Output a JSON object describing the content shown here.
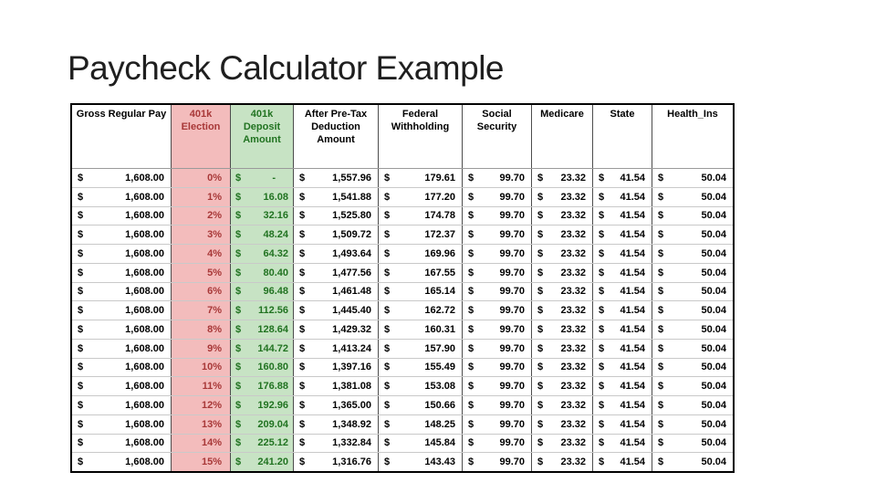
{
  "title": "Paycheck Calculator Example",
  "table": {
    "currency_symbol": "$",
    "colors": {
      "election_bg": "#F3BCBC",
      "election_fg": "#A83838",
      "deposit_bg": "#C7E3C4",
      "deposit_fg": "#217321",
      "header_fg": "#000000",
      "border_outer": "#000000"
    },
    "columns": [
      {
        "id": "gross",
        "label": "Gross Regular Pay",
        "money": true,
        "bg": "#FFFFFF",
        "fg": "#000000"
      },
      {
        "id": "election",
        "label": "401k Election",
        "money": false,
        "bg": "#F3BCBC",
        "fg": "#A83838"
      },
      {
        "id": "deposit",
        "label": "401k Deposit Amount",
        "money": true,
        "bg": "#C7E3C4",
        "fg": "#217321"
      },
      {
        "id": "after",
        "label": "After Pre-Tax Deduction Amount",
        "money": true,
        "bg": "#FFFFFF",
        "fg": "#000000"
      },
      {
        "id": "federal",
        "label": "Federal Withholding",
        "money": true,
        "bg": "#FFFFFF",
        "fg": "#000000"
      },
      {
        "id": "ss",
        "label": "Social Security",
        "money": true,
        "bg": "#FFFFFF",
        "fg": "#000000"
      },
      {
        "id": "medicare",
        "label": "Medicare",
        "money": true,
        "bg": "#FFFFFF",
        "fg": "#000000"
      },
      {
        "id": "state",
        "label": "State",
        "money": true,
        "bg": "#FFFFFF",
        "fg": "#000000"
      },
      {
        "id": "health",
        "label": "Health_Ins",
        "money": true,
        "bg": "#FFFFFF",
        "fg": "#000000"
      }
    ],
    "rows": [
      [
        "1,608.00",
        "0%",
        "-",
        "1,557.96",
        "179.61",
        "99.70",
        "23.32",
        "41.54",
        "50.04"
      ],
      [
        "1,608.00",
        "1%",
        "16.08",
        "1,541.88",
        "177.20",
        "99.70",
        "23.32",
        "41.54",
        "50.04"
      ],
      [
        "1,608.00",
        "2%",
        "32.16",
        "1,525.80",
        "174.78",
        "99.70",
        "23.32",
        "41.54",
        "50.04"
      ],
      [
        "1,608.00",
        "3%",
        "48.24",
        "1,509.72",
        "172.37",
        "99.70",
        "23.32",
        "41.54",
        "50.04"
      ],
      [
        "1,608.00",
        "4%",
        "64.32",
        "1,493.64",
        "169.96",
        "99.70",
        "23.32",
        "41.54",
        "50.04"
      ],
      [
        "1,608.00",
        "5%",
        "80.40",
        "1,477.56",
        "167.55",
        "99.70",
        "23.32",
        "41.54",
        "50.04"
      ],
      [
        "1,608.00",
        "6%",
        "96.48",
        "1,461.48",
        "165.14",
        "99.70",
        "23.32",
        "41.54",
        "50.04"
      ],
      [
        "1,608.00",
        "7%",
        "112.56",
        "1,445.40",
        "162.72",
        "99.70",
        "23.32",
        "41.54",
        "50.04"
      ],
      [
        "1,608.00",
        "8%",
        "128.64",
        "1,429.32",
        "160.31",
        "99.70",
        "23.32",
        "41.54",
        "50.04"
      ],
      [
        "1,608.00",
        "9%",
        "144.72",
        "1,413.24",
        "157.90",
        "99.70",
        "23.32",
        "41.54",
        "50.04"
      ],
      [
        "1,608.00",
        "10%",
        "160.80",
        "1,397.16",
        "155.49",
        "99.70",
        "23.32",
        "41.54",
        "50.04"
      ],
      [
        "1,608.00",
        "11%",
        "176.88",
        "1,381.08",
        "153.08",
        "99.70",
        "23.32",
        "41.54",
        "50.04"
      ],
      [
        "1,608.00",
        "12%",
        "192.96",
        "1,365.00",
        "150.66",
        "99.70",
        "23.32",
        "41.54",
        "50.04"
      ],
      [
        "1,608.00",
        "13%",
        "209.04",
        "1,348.92",
        "148.25",
        "99.70",
        "23.32",
        "41.54",
        "50.04"
      ],
      [
        "1,608.00",
        "14%",
        "225.12",
        "1,332.84",
        "145.84",
        "99.70",
        "23.32",
        "41.54",
        "50.04"
      ],
      [
        "1,608.00",
        "15%",
        "241.20",
        "1,316.76",
        "143.43",
        "99.70",
        "23.32",
        "41.54",
        "50.04"
      ]
    ]
  }
}
